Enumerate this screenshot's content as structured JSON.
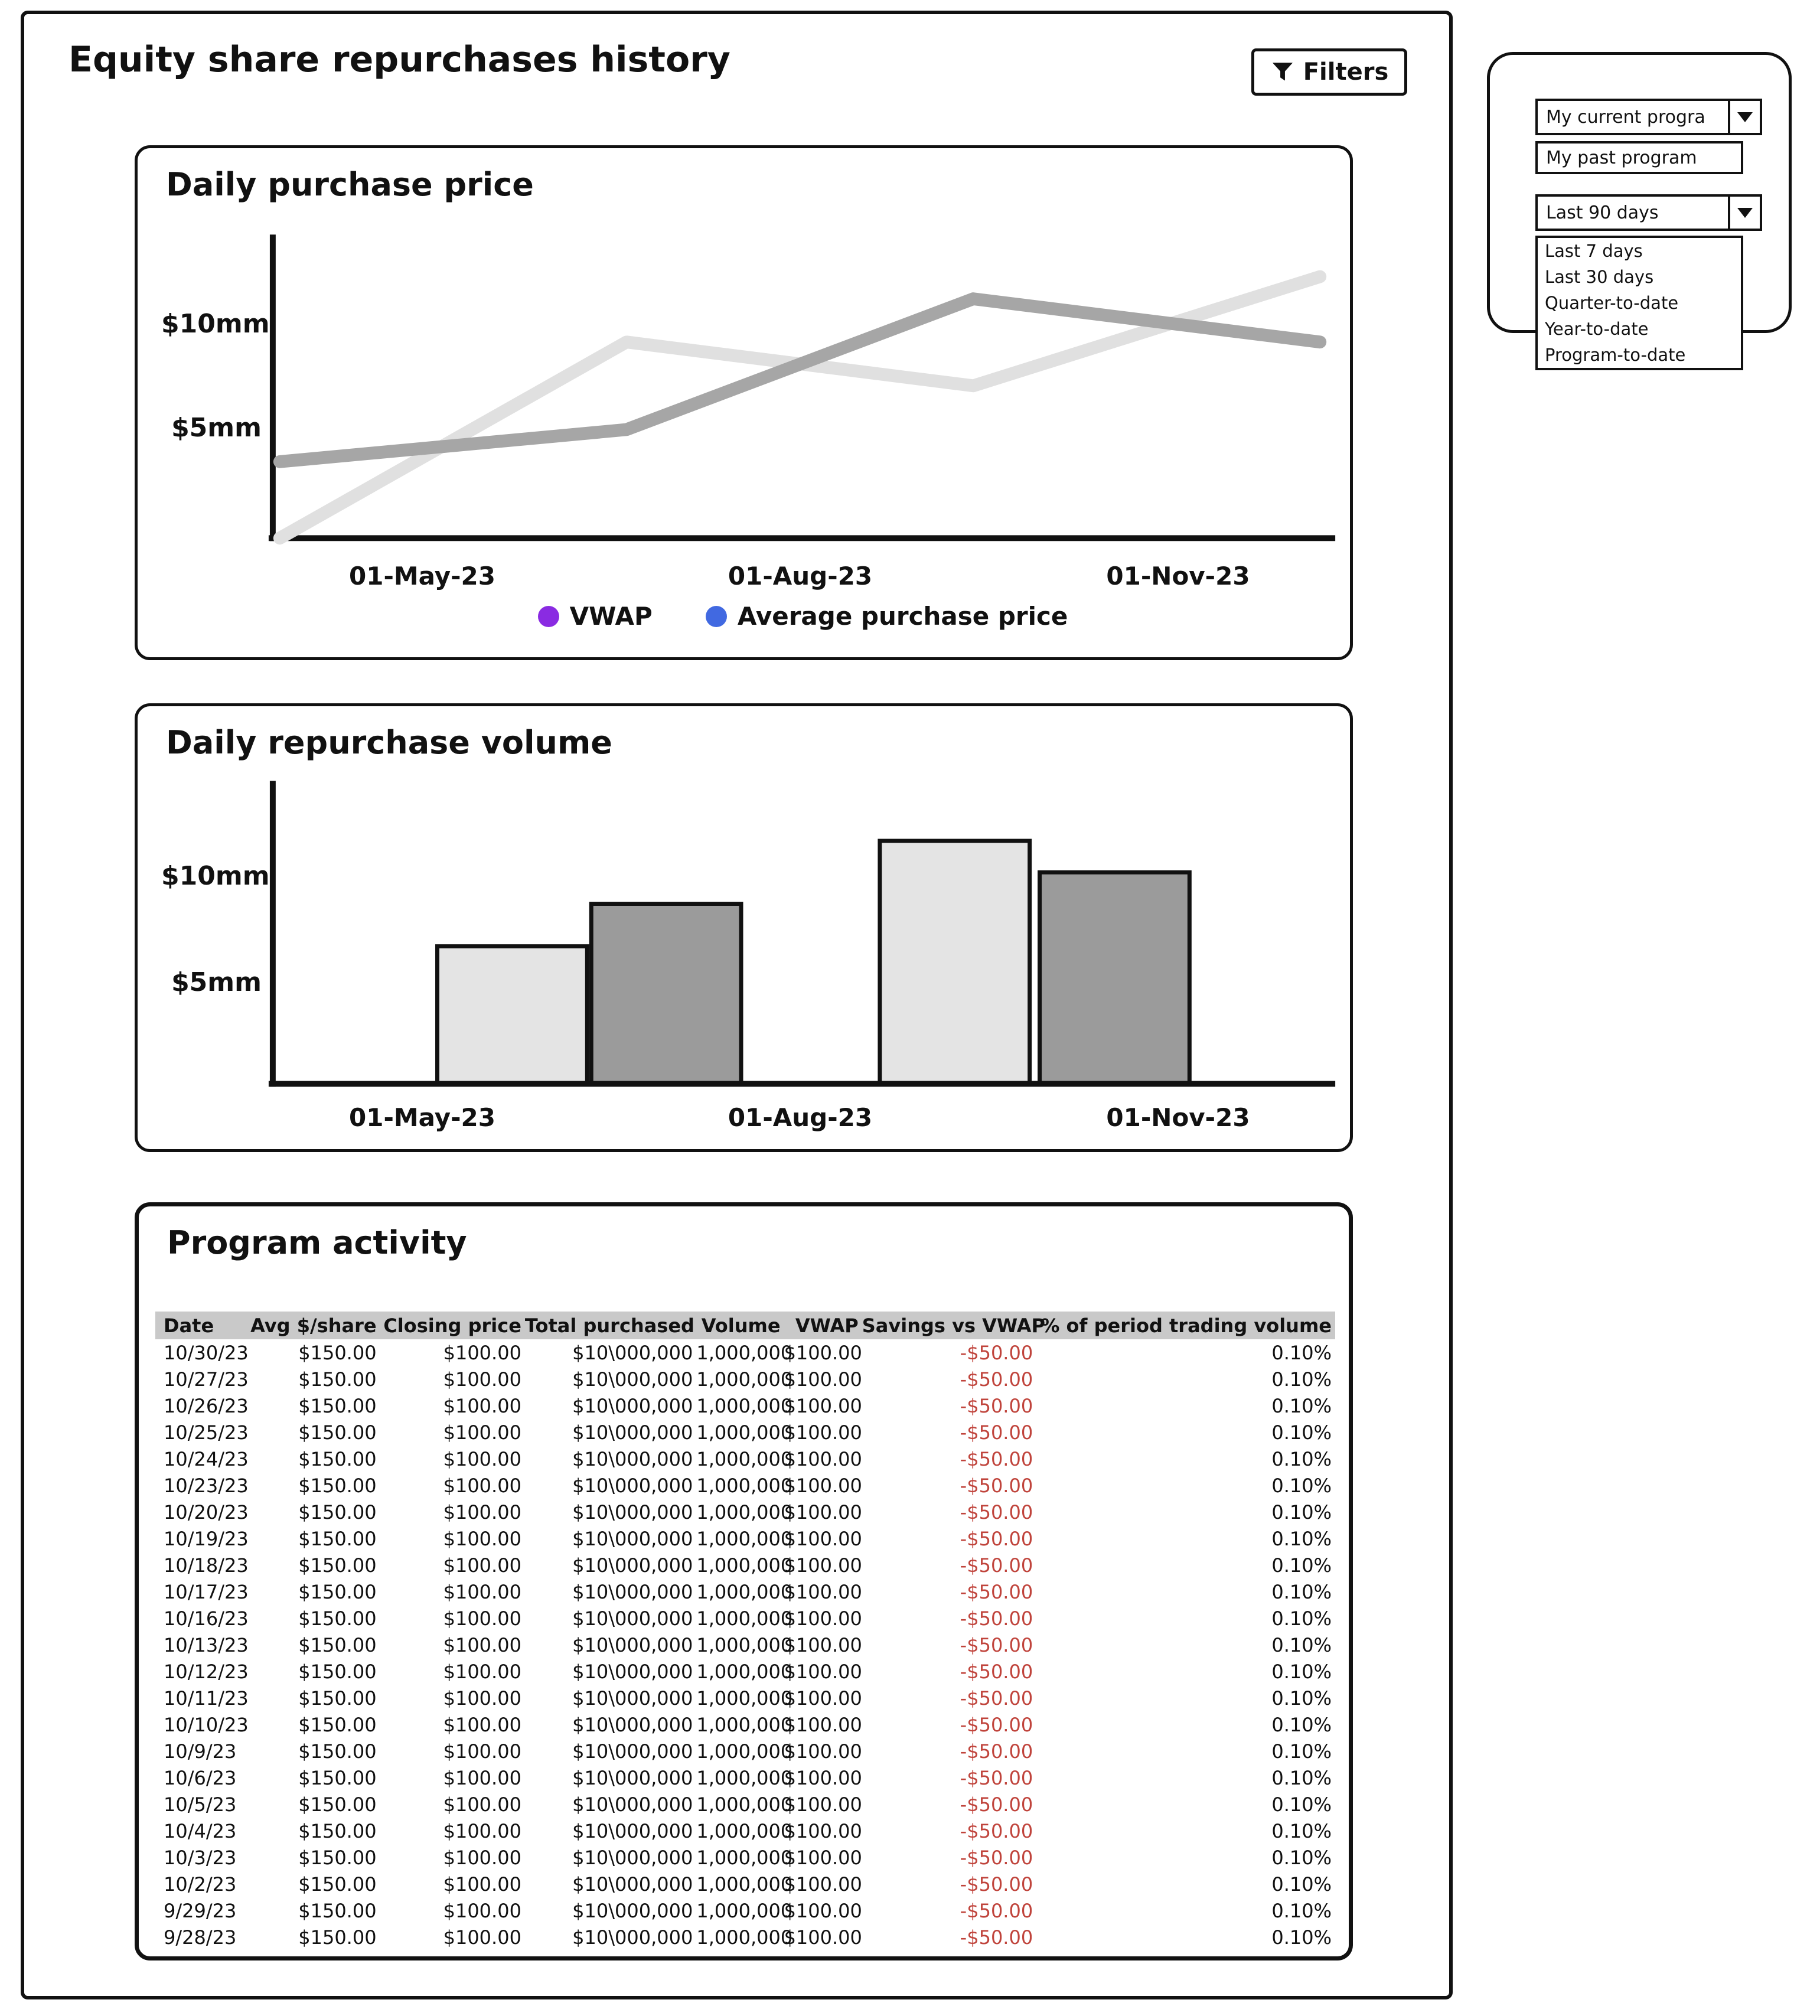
{
  "page": {
    "title": "Equity share repurchases history"
  },
  "toolbar": {
    "filters_label": "Filters"
  },
  "price_chart": {
    "title": "Daily purchase price",
    "y_ticks": [
      "$10mm",
      "$5mm"
    ],
    "x_ticks": [
      "01-May-23",
      "01-Aug-23",
      "01-Nov-23"
    ],
    "legend": [
      {
        "label": "VWAP",
        "color": "#8a2be2"
      },
      {
        "label": "Average purchase price",
        "color": "#4169e1"
      }
    ]
  },
  "volume_chart": {
    "title": "Daily repurchase volume",
    "y_ticks": [
      "$10mm",
      "$5mm"
    ],
    "x_ticks": [
      "01-May-23",
      "01-Aug-23",
      "01-Nov-23"
    ]
  },
  "program_activity": {
    "title": "Program activity",
    "columns": [
      "Date",
      "Avg $/share",
      "Closing price",
      "Total purchased",
      "Volume",
      "VWAP",
      "Savings vs VWAP",
      "% of period trading volume"
    ],
    "negative_color": "#c0443c",
    "rows": [
      [
        "10/30/23",
        "$150.00",
        "$100.00",
        "$10\\000,000",
        "1,000,000",
        "$100.00",
        "-$50.00",
        "0.10%"
      ],
      [
        "10/27/23",
        "$150.00",
        "$100.00",
        "$10\\000,000",
        "1,000,000",
        "$100.00",
        "-$50.00",
        "0.10%"
      ],
      [
        "10/26/23",
        "$150.00",
        "$100.00",
        "$10\\000,000",
        "1,000,000",
        "$100.00",
        "-$50.00",
        "0.10%"
      ],
      [
        "10/25/23",
        "$150.00",
        "$100.00",
        "$10\\000,000",
        "1,000,000",
        "$100.00",
        "-$50.00",
        "0.10%"
      ],
      [
        "10/24/23",
        "$150.00",
        "$100.00",
        "$10\\000,000",
        "1,000,000",
        "$100.00",
        "-$50.00",
        "0.10%"
      ],
      [
        "10/23/23",
        "$150.00",
        "$100.00",
        "$10\\000,000",
        "1,000,000",
        "$100.00",
        "-$50.00",
        "0.10%"
      ],
      [
        "10/20/23",
        "$150.00",
        "$100.00",
        "$10\\000,000",
        "1,000,000",
        "$100.00",
        "-$50.00",
        "0.10%"
      ],
      [
        "10/19/23",
        "$150.00",
        "$100.00",
        "$10\\000,000",
        "1,000,000",
        "$100.00",
        "-$50.00",
        "0.10%"
      ],
      [
        "10/18/23",
        "$150.00",
        "$100.00",
        "$10\\000,000",
        "1,000,000",
        "$100.00",
        "-$50.00",
        "0.10%"
      ],
      [
        "10/17/23",
        "$150.00",
        "$100.00",
        "$10\\000,000",
        "1,000,000",
        "$100.00",
        "-$50.00",
        "0.10%"
      ],
      [
        "10/16/23",
        "$150.00",
        "$100.00",
        "$10\\000,000",
        "1,000,000",
        "$100.00",
        "-$50.00",
        "0.10%"
      ],
      [
        "10/13/23",
        "$150.00",
        "$100.00",
        "$10\\000,000",
        "1,000,000",
        "$100.00",
        "-$50.00",
        "0.10%"
      ],
      [
        "10/12/23",
        "$150.00",
        "$100.00",
        "$10\\000,000",
        "1,000,000",
        "$100.00",
        "-$50.00",
        "0.10%"
      ],
      [
        "10/11/23",
        "$150.00",
        "$100.00",
        "$10\\000,000",
        "1,000,000",
        "$100.00",
        "-$50.00",
        "0.10%"
      ],
      [
        "10/10/23",
        "$150.00",
        "$100.00",
        "$10\\000,000",
        "1,000,000",
        "$100.00",
        "-$50.00",
        "0.10%"
      ],
      [
        "10/9/23",
        "$150.00",
        "$100.00",
        "$10\\000,000",
        "1,000,000",
        "$100.00",
        "-$50.00",
        "0.10%"
      ],
      [
        "10/6/23",
        "$150.00",
        "$100.00",
        "$10\\000,000",
        "1,000,000",
        "$100.00",
        "-$50.00",
        "0.10%"
      ],
      [
        "10/5/23",
        "$150.00",
        "$100.00",
        "$10\\000,000",
        "1,000,000",
        "$100.00",
        "-$50.00",
        "0.10%"
      ],
      [
        "10/4/23",
        "$150.00",
        "$100.00",
        "$10\\000,000",
        "1,000,000",
        "$100.00",
        "-$50.00",
        "0.10%"
      ],
      [
        "10/3/23",
        "$150.00",
        "$100.00",
        "$10\\000,000",
        "1,000,000",
        "$100.00",
        "-$50.00",
        "0.10%"
      ],
      [
        "10/2/23",
        "$150.00",
        "$100.00",
        "$10\\000,000",
        "1,000,000",
        "$100.00",
        "-$50.00",
        "0.10%"
      ],
      [
        "9/29/23",
        "$150.00",
        "$100.00",
        "$10\\000,000",
        "1,000,000",
        "$100.00",
        "-$50.00",
        "0.10%"
      ],
      [
        "9/28/23",
        "$150.00",
        "$100.00",
        "$10\\000,000",
        "1,000,000",
        "$100.00",
        "-$50.00",
        "0.10%"
      ]
    ]
  },
  "filters_panel": {
    "program_select": {
      "value": "My current progra",
      "options": [
        "My past program"
      ]
    },
    "period_select": {
      "value": "Last 90 days",
      "options": [
        "Last 7 days",
        "Last 30 days",
        "Quarter-to-date",
        "Year-to-date",
        "Program-to-date"
      ]
    }
  },
  "chart_data": [
    {
      "type": "line",
      "title": "Daily purchase price",
      "x_tick_labels": [
        "01-May-23",
        "01-Aug-23",
        "01-Nov-23"
      ],
      "y_tick_labels": [
        "$5mm",
        "$10mm"
      ],
      "y_unit": "$mm",
      "ylim": [
        0,
        12.5
      ],
      "legend": [
        "VWAP",
        "Average purchase price"
      ],
      "legend_position": "bottom",
      "series": [
        {
          "name": "Average purchase price",
          "values_mm": [
            0,
            9,
            7,
            12
          ],
          "line_color": "#e0e0e0"
        },
        {
          "name": "VWAP",
          "values_mm": [
            3.5,
            5,
            11,
            9
          ],
          "line_color": "#a6a6a6"
        }
      ]
    },
    {
      "type": "bar",
      "title": "Daily repurchase volume",
      "x_tick_labels": [
        "01-May-23",
        "01-Aug-23",
        "01-Nov-23"
      ],
      "y_tick_labels": [
        "$5mm",
        "$10mm"
      ],
      "y_unit": "$mm",
      "ylim": [
        0,
        12.5
      ],
      "series": [
        {
          "name": "light-bars",
          "values_mm": [
            6.5,
            11.5
          ],
          "bar_color": "#e4e4e4"
        },
        {
          "name": "dark-bars",
          "values_mm": [
            8.5,
            10
          ],
          "bar_color": "#9b9b9b"
        }
      ]
    }
  ]
}
